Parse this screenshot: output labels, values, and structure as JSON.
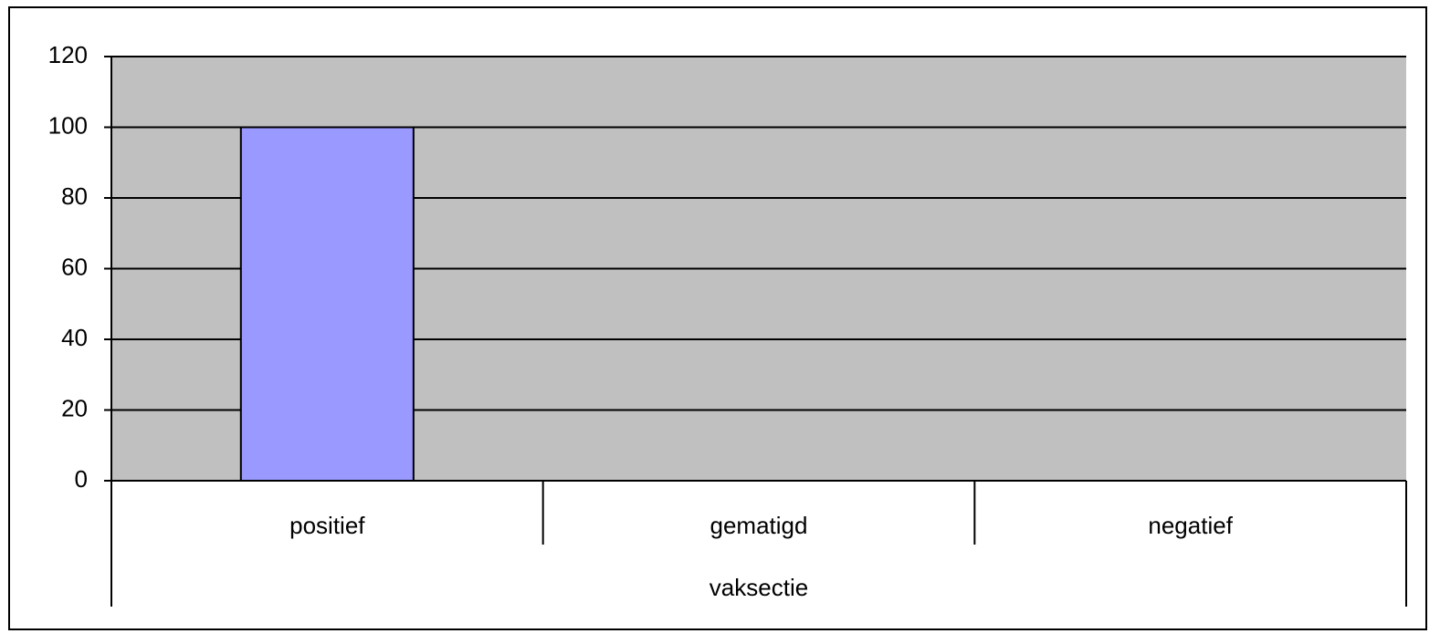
{
  "chart_data": {
    "type": "bar",
    "categories": [
      "positief",
      "gematigd",
      "negatief"
    ],
    "values": [
      100,
      0,
      0
    ],
    "color": "#9999ff",
    "x_label": "vaksectie",
    "ylim": [
      0,
      120
    ],
    "yticks": [
      0,
      20,
      40,
      60,
      80,
      100,
      120
    ],
    "grid": true,
    "plot_background": "#c0c0c0"
  }
}
